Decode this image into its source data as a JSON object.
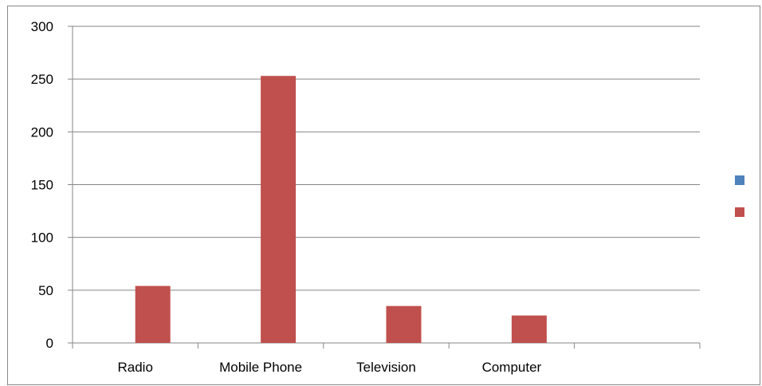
{
  "chart_data": {
    "type": "bar",
    "title": "",
    "xlabel": "",
    "ylabel": "",
    "categories": [
      "Radio",
      "Mobile Phone",
      "Television",
      "Computer",
      ""
    ],
    "series": [
      {
        "values": [
          null,
          null,
          null,
          null,
          null
        ],
        "color": "#4F81BD"
      },
      {
        "values": [
          54,
          253,
          35,
          26,
          null
        ],
        "color": "#C0504D"
      }
    ],
    "ylim": [
      0,
      300
    ],
    "yticks": [
      "0",
      "50",
      "100",
      "150",
      "200",
      "250",
      "300"
    ],
    "grid": true,
    "legend_position": "right"
  }
}
